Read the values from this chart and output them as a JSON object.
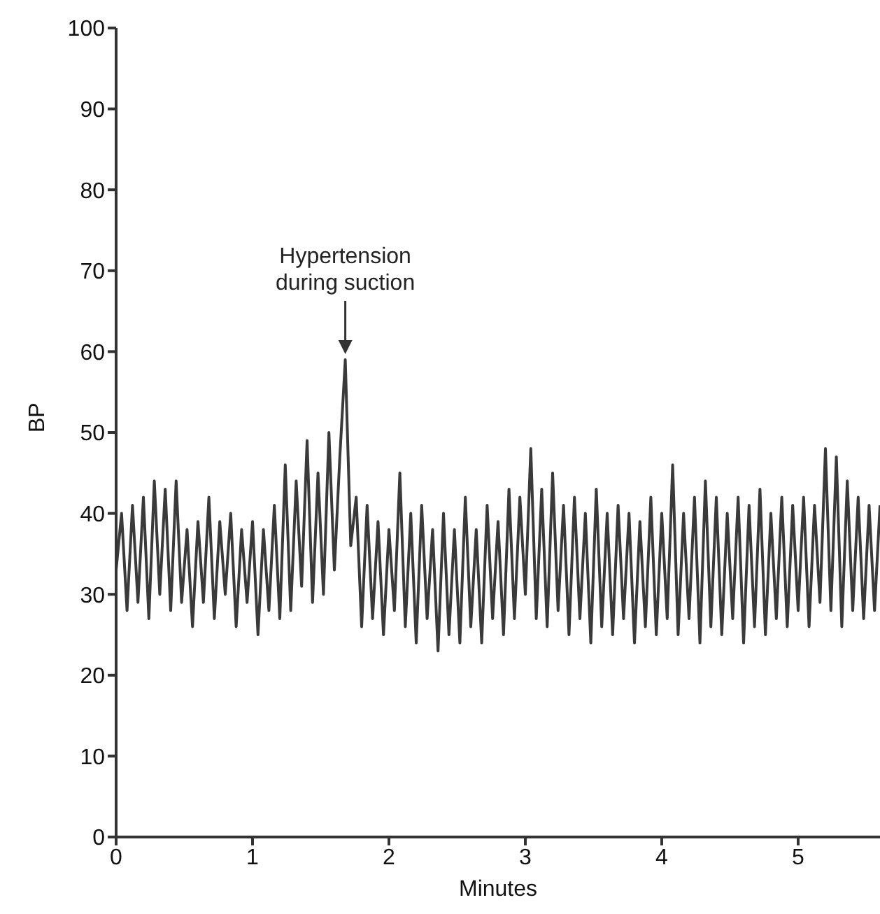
{
  "chart_data": {
    "type": "line",
    "xlabel": "Minutes",
    "ylabel": "BP",
    "xlim": [
      0,
      5.6
    ],
    "xticks": [
      0,
      1,
      2,
      3,
      4,
      5
    ],
    "ylim": [
      0,
      100
    ],
    "yticks": [
      0,
      10,
      20,
      30,
      40,
      50,
      60,
      70,
      80,
      90,
      100
    ],
    "grid": false,
    "marker": "none",
    "line_style": "solid",
    "annotations": [
      {
        "text": "Hypertension during suction",
        "x": 1.68,
        "y": 59
      }
    ],
    "x": [
      0,
      0.04,
      0.08,
      0.12,
      0.16,
      0.2,
      0.24,
      0.28,
      0.32,
      0.36,
      0.4,
      0.44,
      0.48,
      0.52,
      0.56,
      0.6,
      0.64,
      0.68,
      0.72,
      0.76,
      0.8,
      0.84,
      0.88,
      0.92,
      0.96,
      1,
      1.04,
      1.08,
      1.12,
      1.16,
      1.2,
      1.24,
      1.28,
      1.32,
      1.36,
      1.4,
      1.44,
      1.48,
      1.52,
      1.56,
      1.6,
      1.64,
      1.68,
      1.72,
      1.76,
      1.8,
      1.84,
      1.88,
      1.92,
      1.96,
      2,
      2.04,
      2.08,
      2.12,
      2.16,
      2.2,
      2.24,
      2.28,
      2.32,
      2.36,
      2.4,
      2.44,
      2.48,
      2.52,
      2.56,
      2.6,
      2.64,
      2.68,
      2.72,
      2.76,
      2.8,
      2.84,
      2.88,
      2.92,
      2.96,
      3,
      3.04,
      3.08,
      3.12,
      3.16,
      3.2,
      3.24,
      3.28,
      3.32,
      3.36,
      3.4,
      3.44,
      3.48,
      3.52,
      3.56,
      3.6,
      3.64,
      3.68,
      3.72,
      3.76,
      3.8,
      3.84,
      3.88,
      3.92,
      3.96,
      4,
      4.04,
      4.08,
      4.12,
      4.16,
      4.2,
      4.24,
      4.28,
      4.32,
      4.36,
      4.4,
      4.44,
      4.48,
      4.52,
      4.56,
      4.6,
      4.64,
      4.68,
      4.72,
      4.76,
      4.8,
      4.84,
      4.88,
      4.92,
      4.96,
      5,
      5.04,
      5.08,
      5.12,
      5.16,
      5.2,
      5.24,
      5.28,
      5.32,
      5.36,
      5.4,
      5.44,
      5.48,
      5.52,
      5.56,
      5.6
    ],
    "series": [
      {
        "color": "#3a3a3a",
        "values": [
          33,
          40,
          28,
          41,
          29,
          42,
          27,
          44,
          30,
          43,
          28,
          44,
          29,
          38,
          26,
          39,
          29,
          42,
          27,
          39,
          30,
          40,
          26,
          38,
          29,
          39,
          25,
          38,
          28,
          41,
          27,
          46,
          28,
          44,
          31,
          49,
          29,
          45,
          30,
          50,
          33,
          47,
          59,
          36,
          42,
          26,
          41,
          27,
          39,
          25,
          38,
          28,
          45,
          26,
          40,
          24,
          41,
          27,
          38,
          23,
          40,
          25,
          38,
          24,
          42,
          26,
          38,
          24,
          41,
          27,
          39,
          25,
          43,
          27,
          42,
          30,
          48,
          27,
          43,
          26,
          45,
          28,
          41,
          25,
          42,
          27,
          40,
          24,
          43,
          26,
          40,
          25,
          41,
          27,
          40,
          24,
          39,
          26,
          42,
          25,
          40,
          27,
          46,
          25,
          40,
          27,
          42,
          24,
          44,
          26,
          42,
          25,
          40,
          27,
          42,
          24,
          41,
          26,
          43,
          25,
          40,
          27,
          42,
          26,
          41,
          28,
          42,
          26,
          41,
          29,
          48,
          28,
          47,
          26,
          44,
          28,
          42,
          27,
          41,
          28,
          41
        ]
      }
    ]
  }
}
